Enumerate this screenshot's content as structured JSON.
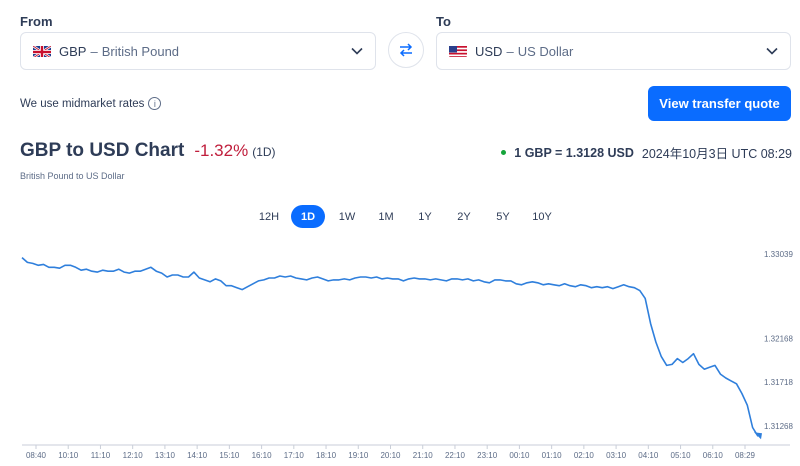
{
  "converter": {
    "from_label": "From",
    "to_label": "To",
    "from": {
      "code": "GBP",
      "sep": "–",
      "name": "British Pound",
      "flag": "uk-flag-icon"
    },
    "to": {
      "code": "USD",
      "sep": "–",
      "name": "US Dollar",
      "flag": "us-flag-icon"
    },
    "swap_icon": "swap-arrows-icon",
    "midmarket_text": "We use midmarket rates",
    "cta_label": "View transfer quote"
  },
  "chart_header": {
    "title": "GBP to USD Chart",
    "change": "-1.32%",
    "period": "(1D)",
    "subtitle": "British Pound to US Dollar",
    "rate_text": "1 GBP = 1.3128 USD",
    "timestamp": "2024年10月3日 UTC 08:29"
  },
  "ranges": [
    "12H",
    "1D",
    "1W",
    "1M",
    "1Y",
    "2Y",
    "5Y",
    "10Y"
  ],
  "active_range": "1D",
  "colors": {
    "accent": "#0a6cff",
    "negative": "#c01e3c",
    "live_dot": "#15a43a",
    "line": "#2f7fdc"
  },
  "chart_data": {
    "type": "line",
    "title": "",
    "xlabel": "",
    "ylabel": "",
    "x_ticks": [
      "08:40",
      "10:10",
      "11:10",
      "12:10",
      "13:10",
      "14:10",
      "15:10",
      "16:10",
      "17:10",
      "18:10",
      "19:10",
      "20:10",
      "21:10",
      "22:10",
      "23:10",
      "00:10",
      "01:10",
      "02:10",
      "03:10",
      "04:10",
      "05:10",
      "06:10",
      "08:29"
    ],
    "y_ticks": [
      1.33039,
      1.32168,
      1.31718,
      1.31268
    ],
    "ylim": [
      1.3107,
      1.3315
    ],
    "grid": false,
    "series": [
      {
        "values": [
          1.33,
          1.3295,
          1.3294,
          1.3292,
          1.3293,
          1.329,
          1.329,
          1.3289,
          1.3292,
          1.3292,
          1.329,
          1.3287,
          1.3288,
          1.3286,
          1.3285,
          1.3287,
          1.3286,
          1.3286,
          1.3288,
          1.3285,
          1.3284,
          1.3286,
          1.3286,
          1.3288,
          1.329,
          1.3286,
          1.3284,
          1.328,
          1.3282,
          1.3282,
          1.328,
          1.328,
          1.3285,
          1.3279,
          1.3277,
          1.3275,
          1.3278,
          1.3276,
          1.3271,
          1.3271,
          1.3269,
          1.3267,
          1.327,
          1.3273,
          1.3276,
          1.3277,
          1.3279,
          1.3279,
          1.3281,
          1.328,
          1.3281,
          1.3279,
          1.3278,
          1.3277,
          1.3279,
          1.328,
          1.3278,
          1.3276,
          1.3277,
          1.3277,
          1.3278,
          1.3277,
          1.3279,
          1.328,
          1.328,
          1.3279,
          1.328,
          1.3278,
          1.3279,
          1.3278,
          1.3278,
          1.3276,
          1.3278,
          1.3279,
          1.3278,
          1.3278,
          1.3277,
          1.3278,
          1.3277,
          1.3276,
          1.3278,
          1.3278,
          1.3277,
          1.3278,
          1.3276,
          1.3277,
          1.3275,
          1.3274,
          1.3277,
          1.3277,
          1.3276,
          1.3276,
          1.3273,
          1.3272,
          1.3274,
          1.3275,
          1.3274,
          1.3272,
          1.3273,
          1.3272,
          1.3271,
          1.3273,
          1.3271,
          1.327,
          1.3272,
          1.3271,
          1.3269,
          1.327,
          1.3269,
          1.327,
          1.3268,
          1.327,
          1.3272,
          1.327,
          1.3269,
          1.3266,
          1.3258,
          1.3232,
          1.3213,
          1.3198,
          1.3189,
          1.319,
          1.3196,
          1.3192,
          1.3196,
          1.3201,
          1.319,
          1.3185,
          1.3187,
          1.3189,
          1.318,
          1.3176,
          1.3173,
          1.317,
          1.316,
          1.3148,
          1.3125,
          1.3116
        ],
        "last": 1.3128
      }
    ]
  }
}
